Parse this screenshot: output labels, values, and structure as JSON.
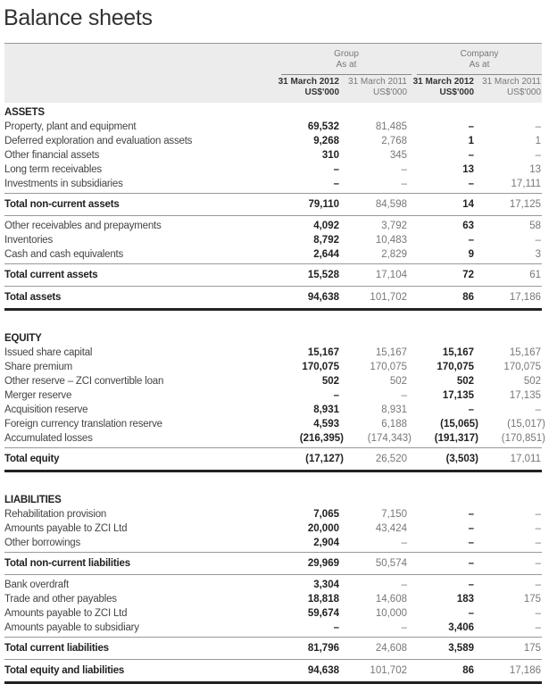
{
  "title": "Balance sheets",
  "header": {
    "group_label": "Group",
    "company_label": "Company",
    "as_at": "As at",
    "columns": [
      {
        "date": "31 March 2012",
        "unit": "US$'000"
      },
      {
        "date": "31 March 2011",
        "unit": "US$'000"
      },
      {
        "date": "31 March 2012",
        "unit": "US$'000"
      },
      {
        "date": "31 March 2011",
        "unit": "US$'000"
      }
    ]
  },
  "sections": [
    {
      "heading": "ASSETS",
      "blocks": [
        {
          "type": "items",
          "rows": [
            {
              "label": "Property, plant and equipment",
              "values": [
                "69,532",
                "81,485",
                "–",
                "–"
              ]
            },
            {
              "label": "Deferred exploration and evaluation assets",
              "values": [
                "9,268",
                "2,768",
                "1",
                "1"
              ]
            },
            {
              "label": "Other financial assets",
              "values": [
                "310",
                "345",
                "–",
                "–"
              ]
            },
            {
              "label": "Long term receivables",
              "values": [
                "–",
                "–",
                "13",
                "13"
              ]
            },
            {
              "label": "Investments in subsidiaries",
              "values": [
                "–",
                "–",
                "–",
                "17,111"
              ]
            }
          ]
        },
        {
          "type": "total",
          "label": "Total non-current assets",
          "values": [
            "79,110",
            "84,598",
            "14",
            "17,125"
          ]
        },
        {
          "type": "items",
          "rows": [
            {
              "label": "Other receivables and prepayments",
              "values": [
                "4,092",
                "3,792",
                "63",
                "58"
              ]
            },
            {
              "label": "Inventories",
              "values": [
                "8,792",
                "10,483",
                "–",
                "–"
              ]
            },
            {
              "label": "Cash and cash equivalents",
              "values": [
                "2,644",
                "2,829",
                "9",
                "3"
              ]
            }
          ]
        },
        {
          "type": "total",
          "label": "Total current assets",
          "values": [
            "15,528",
            "17,104",
            "72",
            "61"
          ]
        },
        {
          "type": "grand",
          "label": "Total assets",
          "values": [
            "94,638",
            "101,702",
            "86",
            "17,186"
          ]
        }
      ]
    },
    {
      "heading": "EQUITY",
      "blocks": [
        {
          "type": "items",
          "rows": [
            {
              "label": "Issued share capital",
              "values": [
                "15,167",
                "15,167",
                "15,167",
                "15,167"
              ]
            },
            {
              "label": "Share premium",
              "values": [
                "170,075",
                "170,075",
                "170,075",
                "170,075"
              ]
            },
            {
              "label": "Other reserve – ZCI convertible loan",
              "values": [
                "502",
                "502",
                "502",
                "502"
              ]
            },
            {
              "label": "Merger reserve",
              "values": [
                "–",
                "–",
                "17,135",
                "17,135"
              ]
            },
            {
              "label": "Acquisition reserve",
              "values": [
                "8,931",
                "8,931",
                "–",
                "–"
              ]
            },
            {
              "label": "Foreign currency translation reserve",
              "values": [
                "4,593",
                "6,188",
                "(15,065)",
                "(15,017)"
              ]
            },
            {
              "label": "Accumulated losses",
              "values": [
                "(216,395)",
                "(174,343)",
                "(191,317)",
                "(170,851)"
              ]
            }
          ]
        },
        {
          "type": "grand",
          "label": "Total equity",
          "values": [
            "(17,127)",
            "26,520",
            "(3,503)",
            "17,011"
          ]
        }
      ]
    },
    {
      "heading": "LIABILITIES",
      "blocks": [
        {
          "type": "items",
          "rows": [
            {
              "label": "Rehabilitation provision",
              "values": [
                "7,065",
                "7,150",
                "–",
                "–"
              ]
            },
            {
              "label": "Amounts payable to ZCI Ltd",
              "values": [
                "20,000",
                "43,424",
                "–",
                "–"
              ]
            },
            {
              "label": "Other borrowings",
              "values": [
                "2,904",
                "–",
                "–",
                "–"
              ]
            }
          ]
        },
        {
          "type": "total",
          "label": "Total non-current liabilities",
          "values": [
            "29,969",
            "50,574",
            "–",
            "–"
          ]
        },
        {
          "type": "items",
          "rows": [
            {
              "label": "Bank overdraft",
              "values": [
                "3,304",
                "–",
                "–",
                "–"
              ]
            },
            {
              "label": "Trade and other payables",
              "values": [
                "18,818",
                "14,608",
                "183",
                "175"
              ]
            },
            {
              "label": "Amounts payable to ZCI Ltd",
              "values": [
                "59,674",
                "10,000",
                "–",
                "–"
              ]
            },
            {
              "label": "Amounts payable to subsidiary",
              "values": [
                "–",
                "–",
                "3,406",
                "–"
              ]
            }
          ]
        },
        {
          "type": "total",
          "label": "Total current liabilities",
          "values": [
            "81,796",
            "24,608",
            "3,589",
            "175"
          ]
        },
        {
          "type": "grand",
          "label": "Total equity and liabilities",
          "values": [
            "94,638",
            "101,702",
            "86",
            "17,186"
          ]
        }
      ]
    }
  ]
}
